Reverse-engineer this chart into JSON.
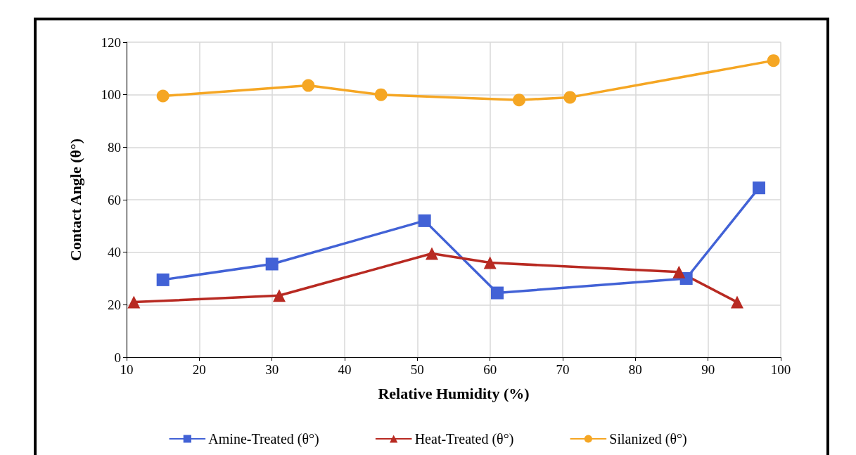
{
  "chart_data": {
    "type": "line",
    "xlabel": "Relative Humidity (%)",
    "ylabel": "Contact Angle (θ°)",
    "xlim": [
      10,
      100
    ],
    "xticks": [
      10,
      20,
      30,
      40,
      50,
      60,
      70,
      80,
      90,
      100
    ],
    "ylim": [
      0,
      120
    ],
    "yticks": [
      0,
      20,
      40,
      60,
      80,
      100,
      120
    ],
    "grid": true,
    "legend": "bottom",
    "series": [
      {
        "name": "Amine-Treated (θ°)",
        "color": "#4262d6",
        "marker": "square",
        "x": [
          15,
          30,
          51,
          61,
          87,
          97
        ],
        "values": [
          29.5,
          35.5,
          52,
          24.5,
          30,
          64.5
        ]
      },
      {
        "name": "Heat-Treated (θ°)",
        "color": "#b82a22",
        "marker": "triangle",
        "x": [
          11,
          31,
          52,
          60,
          86,
          94
        ],
        "values": [
          21,
          23.5,
          39.5,
          36,
          32.5,
          21
        ]
      },
      {
        "name": "Silanized (θ°)",
        "color": "#f5a623",
        "marker": "circle",
        "x": [
          15,
          35,
          45,
          64,
          71,
          99
        ],
        "values": [
          99.5,
          103.5,
          100,
          98,
          99,
          113
        ]
      }
    ]
  }
}
